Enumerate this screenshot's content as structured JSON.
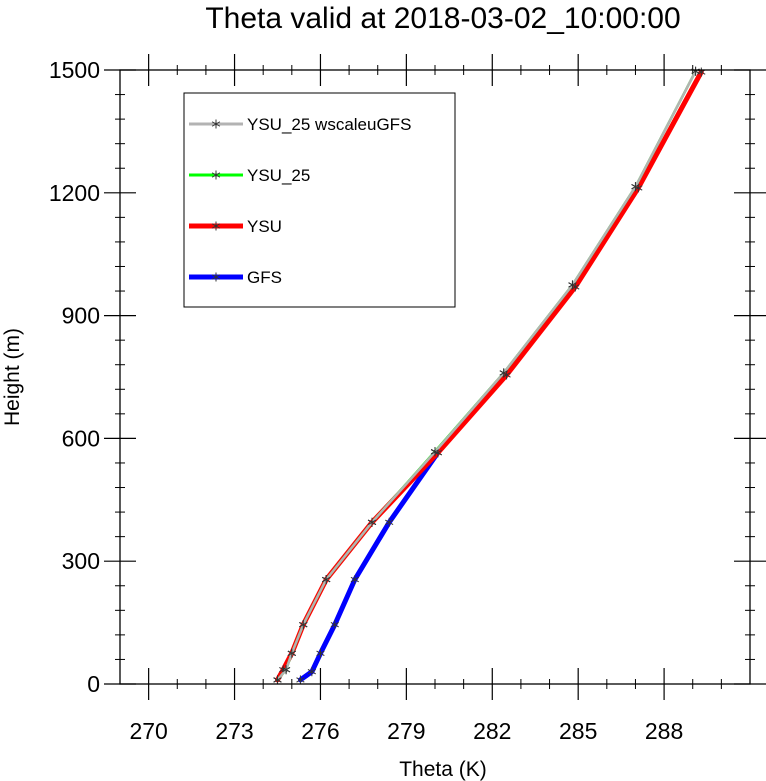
{
  "chart_data": {
    "type": "line",
    "title": "Theta valid at 2018-03-02_10:00:00",
    "xlabel": "Theta (K)",
    "ylabel": "Height (m)",
    "xlim": [
      269,
      291
    ],
    "ylim": [
      0,
      1500
    ],
    "xticks": [
      270,
      273,
      276,
      279,
      282,
      285,
      288
    ],
    "xtick_labels": [
      "270",
      "273",
      "276",
      "279",
      "282",
      "285",
      "288"
    ],
    "yticks": [
      0,
      300,
      600,
      900,
      1200,
      1500
    ],
    "ytick_labels": [
      "0",
      "300",
      "600",
      "900",
      "1200",
      "1500"
    ],
    "legend_position": "top-left",
    "series": [
      {
        "name": "GFS",
        "color": "#0000ff",
        "marker": "asterisk",
        "points": [
          [
            275.3,
            10
          ],
          [
            275.7,
            30
          ],
          [
            276.0,
            75
          ],
          [
            276.5,
            145
          ],
          [
            277.2,
            255
          ],
          [
            278.4,
            395
          ],
          [
            280.1,
            565
          ]
        ]
      },
      {
        "name": "YSU",
        "color": "#ff0000",
        "marker": "asterisk",
        "points": [
          [
            274.5,
            10
          ],
          [
            274.7,
            35
          ],
          [
            275.0,
            75
          ],
          [
            275.4,
            145
          ],
          [
            276.2,
            255
          ],
          [
            277.8,
            395
          ],
          [
            280.1,
            565
          ],
          [
            282.5,
            755
          ],
          [
            284.9,
            970
          ],
          [
            287.1,
            1212
          ],
          [
            289.3,
            1495
          ]
        ]
      },
      {
        "name": "YSU_25",
        "color": "#00ff00",
        "marker": "asterisk",
        "points": [
          [
            274.5,
            10
          ],
          [
            274.8,
            35
          ],
          [
            275.0,
            75
          ],
          [
            275.4,
            145
          ],
          [
            276.2,
            255
          ],
          [
            277.8,
            395
          ],
          [
            280.0,
            568
          ],
          [
            282.4,
            760
          ],
          [
            284.8,
            975
          ],
          [
            287.0,
            1215
          ],
          [
            289.1,
            1497
          ]
        ]
      },
      {
        "name": "YSU_25 wscaleuGFS",
        "color": "#b3b3b3",
        "marker": "asterisk",
        "points": [
          [
            274.5,
            10
          ],
          [
            274.8,
            35
          ],
          [
            275.0,
            75
          ],
          [
            275.4,
            145
          ],
          [
            276.2,
            255
          ],
          [
            277.8,
            395
          ],
          [
            280.0,
            567
          ],
          [
            282.4,
            760
          ],
          [
            284.8,
            975
          ],
          [
            287.0,
            1215
          ],
          [
            289.1,
            1497
          ]
        ]
      }
    ],
    "legend": [
      {
        "label": "YSU_25 wscaleuGFS",
        "color": "#b3b3b3",
        "style": "thin"
      },
      {
        "label": "YSU_25",
        "color": "#00ff00",
        "style": "thin"
      },
      {
        "label": "YSU",
        "color": "#ff0000",
        "style": "thick"
      },
      {
        "label": "GFS",
        "color": "#0000ff",
        "style": "thick"
      }
    ]
  }
}
